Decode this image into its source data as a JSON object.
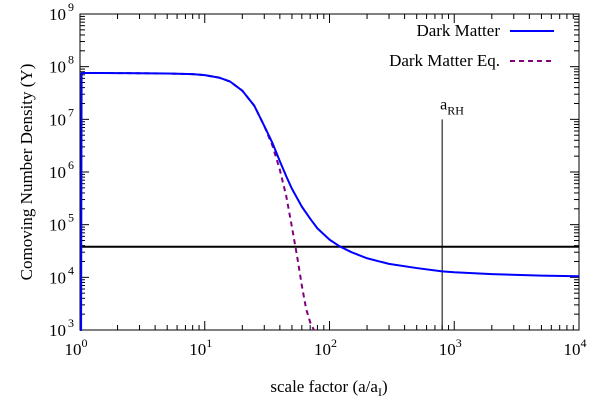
{
  "chart_data": {
    "type": "line",
    "xlabel_main": "scale factor (a/a",
    "xlabel_sub": "I",
    "xlabel_close": ")",
    "ylabel": "Comoving Number Density (Y)",
    "x_scale": "log",
    "y_scale": "log",
    "xlim": [
      1,
      10000
    ],
    "ylim": [
      1000,
      1000000000
    ],
    "grid": false,
    "legend_position": "top-right",
    "x_ticks": [
      {
        "base": "10",
        "exp": "0",
        "value": 1
      },
      {
        "base": "10",
        "exp": "1",
        "value": 10
      },
      {
        "base": "10",
        "exp": "2",
        "value": 100
      },
      {
        "base": "10",
        "exp": "3",
        "value": 1000
      },
      {
        "base": "10",
        "exp": "4",
        "value": 10000
      }
    ],
    "y_ticks": [
      {
        "base": "10",
        "exp": "3",
        "value": 1000
      },
      {
        "base": "10",
        "exp": "4",
        "value": 10000
      },
      {
        "base": "10",
        "exp": "5",
        "value": 100000
      },
      {
        "base": "10",
        "exp": "6",
        "value": 1000000
      },
      {
        "base": "10",
        "exp": "7",
        "value": 10000000
      },
      {
        "base": "10",
        "exp": "8",
        "value": 100000000
      },
      {
        "base": "10",
        "exp": "9",
        "value": 1000000000
      }
    ],
    "series": [
      {
        "name": "Dark Matter",
        "color": "#0000ff",
        "style": "solid",
        "x": [
          1.0,
          1.02,
          1.03,
          1.05,
          1.1,
          1.5,
          2,
          3,
          5,
          8,
          10,
          13,
          16,
          20,
          25,
          30,
          35,
          40,
          45,
          50,
          60,
          70,
          80,
          100,
          120,
          150,
          200,
          300,
          500,
          800,
          1000,
          2000,
          5000,
          10000
        ],
        "y": [
          1000,
          1000,
          75000000,
          76000000,
          76000000,
          76000000,
          75500000,
          75000000,
          74000000,
          72000000,
          69000000,
          62000000,
          52000000,
          35000000,
          18000000,
          7500000,
          3500000,
          1600000,
          830000,
          480000,
          220000,
          130000,
          85000,
          52000,
          39000,
          30000,
          23000,
          18000,
          15000,
          13000,
          12500,
          11500,
          10800,
          10500
        ]
      },
      {
        "name": "Dark Matter Eq.",
        "color": "#800080",
        "style": "dashed",
        "x": [
          1.03,
          1.05,
          1.1,
          1.5,
          2,
          3,
          5,
          8,
          10,
          13,
          16,
          20,
          25,
          30,
          35,
          40,
          45,
          50,
          55,
          60,
          65,
          70,
          75
        ],
        "y": [
          75000000,
          76000000,
          76000000,
          76000000,
          75500000,
          75000000,
          74000000,
          72000000,
          69000000,
          62000000,
          52000000,
          35000000,
          18000000,
          7500000,
          3100000,
          1100000,
          350000,
          90000,
          25000,
          7000,
          2500,
          1400,
          1000
        ]
      }
    ],
    "reference_lines": [
      {
        "orientation": "horizontal",
        "value": 38000,
        "color": "#000000"
      },
      {
        "orientation": "vertical",
        "value": 800,
        "color": "#000000"
      }
    ],
    "annotations": [
      {
        "text": "a",
        "sub": "RH",
        "x": 800
      }
    ]
  }
}
